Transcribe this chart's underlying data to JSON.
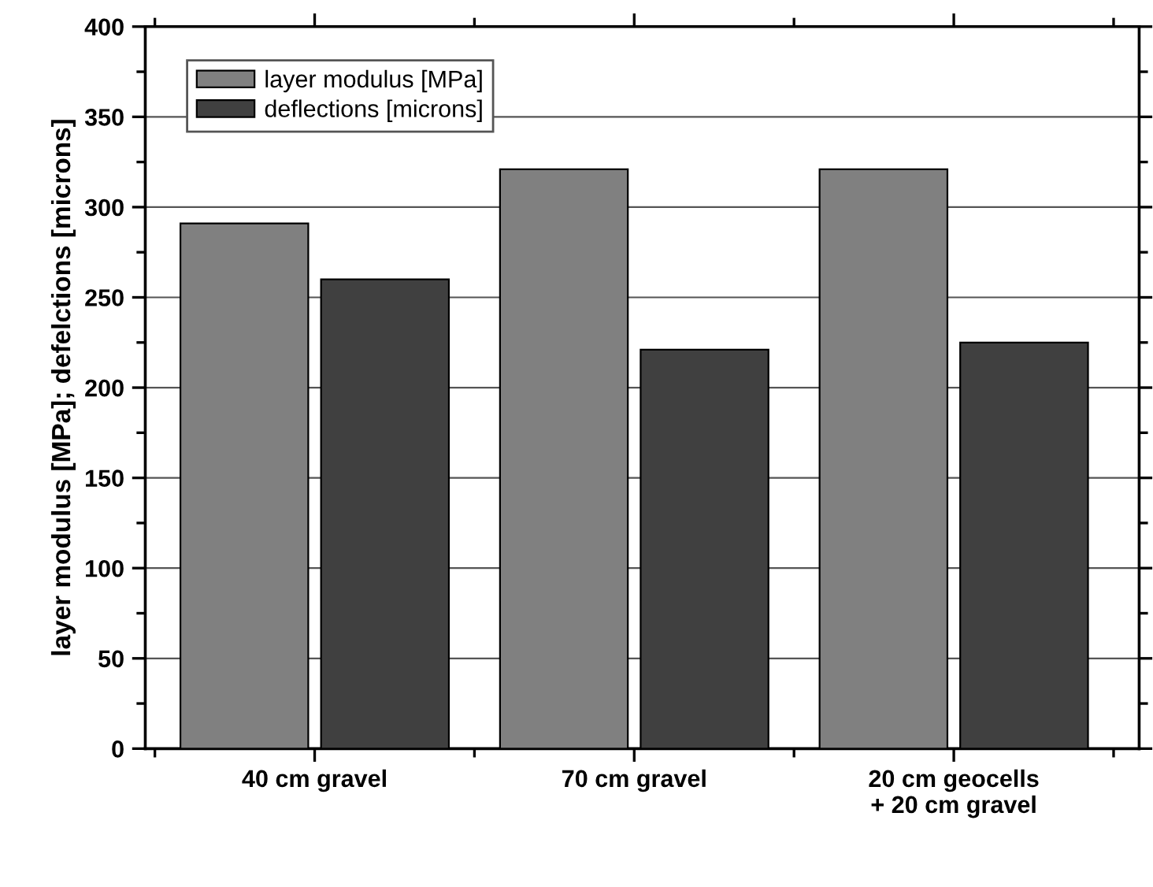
{
  "chart_data": {
    "type": "bar",
    "ylabel": "layer modulus [MPa]; defelctions [microns]",
    "categories": [
      "40 cm gravel",
      "70 cm gravel",
      "20 cm geocells\n+ 20 cm gravel"
    ],
    "series": [
      {
        "name": "layer modulus [MPa]",
        "color": "#808080",
        "values": [
          291,
          321,
          321
        ]
      },
      {
        "name": "deflections [microns]",
        "color": "#404040",
        "values": [
          260,
          221,
          225
        ]
      }
    ],
    "ylim": [
      0,
      400
    ],
    "yticks": [
      0,
      50,
      100,
      150,
      200,
      250,
      300,
      350,
      400
    ],
    "grid": "y",
    "legend": "top left"
  }
}
